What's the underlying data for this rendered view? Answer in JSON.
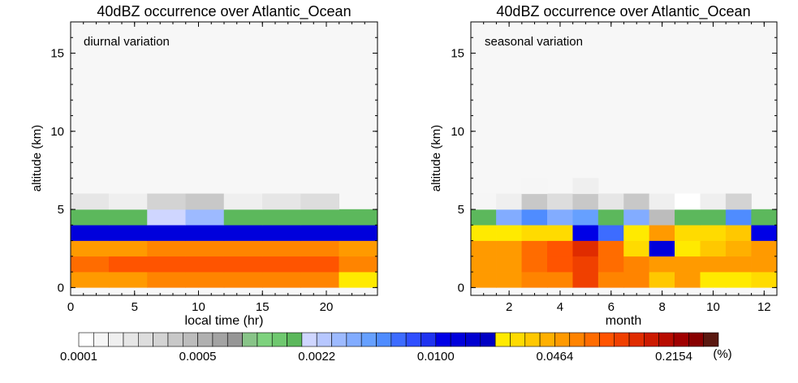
{
  "panels": [
    {
      "title": "40dBZ occurrence over Atlantic_Ocean",
      "annotation": "diurnal variation",
      "xlabel": "local time (hr)",
      "ylabel": "altitude (km)",
      "xlim": [
        0,
        24
      ],
      "ylim": [
        -0.5,
        17
      ],
      "xticks": [
        "0",
        "5",
        "10",
        "15",
        "20"
      ],
      "xtick_values": [
        0,
        5,
        10,
        15,
        20
      ],
      "yticks": [
        "0",
        "5",
        "10",
        "15"
      ],
      "ytick_values": [
        0,
        5,
        10,
        15
      ]
    },
    {
      "title": "40dBZ occurrence over Atlantic_Ocean",
      "annotation": "seasonal variation",
      "xlabel": "month",
      "ylabel": "altitude (km)",
      "xlim": [
        0.5,
        12.5
      ],
      "ylim": [
        -0.5,
        17
      ],
      "xticks": [
        "2",
        "4",
        "6",
        "8",
        "10",
        "12"
      ],
      "xtick_values": [
        2,
        4,
        6,
        8,
        10,
        12
      ],
      "yticks": [
        "0",
        "5",
        "10",
        "15"
      ],
      "ytick_values": [
        0,
        5,
        10,
        15
      ]
    }
  ],
  "chart_data": [
    {
      "type": "heatmap",
      "title": "40dBZ occurrence over Atlantic_Ocean",
      "xlabel": "local time (hr)",
      "ylabel": "altitude (km)",
      "x_centers": [
        1.5,
        4.5,
        7.5,
        10.5,
        13.5,
        16.5,
        19.5,
        22.5
      ],
      "x_width": 3,
      "y_centers": [
        0.5,
        1.5,
        2.5,
        3.5,
        4.5,
        5.5
      ],
      "y_height": 1,
      "color_index": [
        [
          32,
          32,
          33,
          33,
          33,
          33,
          33,
          28
        ],
        [
          34,
          35,
          35,
          35,
          35,
          35,
          35,
          33
        ],
        [
          32,
          32,
          33,
          33,
          33,
          33,
          33,
          32
        ],
        [
          25,
          25,
          25,
          25,
          25,
          25,
          25,
          25
        ],
        [
          14,
          14,
          15,
          17,
          14,
          14,
          14,
          14
        ],
        [
          3,
          2,
          5,
          6,
          2,
          3,
          4,
          null
        ]
      ]
    },
    {
      "type": "heatmap",
      "title": "40dBZ occurrence over Atlantic_Ocean",
      "xlabel": "month",
      "ylabel": "altitude (km)",
      "x_centers": [
        1,
        2,
        3,
        4,
        5,
        6,
        7,
        8,
        9,
        10,
        11,
        12
      ],
      "x_width": 1,
      "y_centers": [
        0.5,
        1.5,
        2.5,
        3.5,
        4.5,
        5.5,
        6.5
      ],
      "y_height": 1,
      "color_index": [
        [
          32,
          32,
          33,
          33,
          36,
          33,
          33,
          30,
          32,
          28,
          28,
          29
        ],
        [
          32,
          32,
          34,
          35,
          36,
          34,
          33,
          32,
          32,
          32,
          32,
          32
        ],
        [
          32,
          32,
          34,
          35,
          37,
          34,
          29,
          25,
          28,
          30,
          31,
          32
        ],
        [
          28,
          28,
          29,
          29,
          24,
          21,
          28,
          32,
          29,
          29,
          30,
          24
        ],
        [
          14,
          18,
          20,
          18,
          19,
          14,
          18,
          7,
          14,
          14,
          20,
          14
        ],
        [
          1,
          2,
          6,
          4,
          6,
          3,
          6,
          2,
          0,
          2,
          5,
          null
        ],
        [
          null,
          null,
          1,
          null,
          2,
          null,
          null,
          null,
          null,
          null,
          null,
          null
        ]
      ]
    }
  ],
  "colorbar": {
    "colors": [
      "#ffffff",
      "#f6f6f6",
      "#efefef",
      "#e6e6e6",
      "#dddddd",
      "#d3d3d3",
      "#c8c8c8",
      "#bcbcbc",
      "#b0b0b0",
      "#a3a3a3",
      "#969696",
      "#88c488",
      "#7ed27e",
      "#6fc86f",
      "#5cb85c",
      "#cfd6ff",
      "#b7c7ff",
      "#9dbaff",
      "#82acff",
      "#66a0ff",
      "#4f8cff",
      "#3d6cff",
      "#2f4fff",
      "#1f33f0",
      "#0000e6",
      "#0000dc",
      "#0000d0",
      "#0000c4",
      "#ffea00",
      "#ffdb00",
      "#ffc800",
      "#ffb000",
      "#ff9a00",
      "#ff8400",
      "#ff6c00",
      "#ff5400",
      "#f04000",
      "#e02c00",
      "#cc1a00",
      "#b80c00",
      "#a00000",
      "#880000",
      "#5a1810"
    ],
    "labels": [
      "0.0001",
      "0.0005",
      "0.0022",
      "0.0100",
      "0.0464",
      "0.2154"
    ],
    "label_indices": [
      0,
      8,
      16,
      24,
      32,
      40
    ],
    "unit": "(%)",
    "empty_color": "#f7f7f7"
  }
}
